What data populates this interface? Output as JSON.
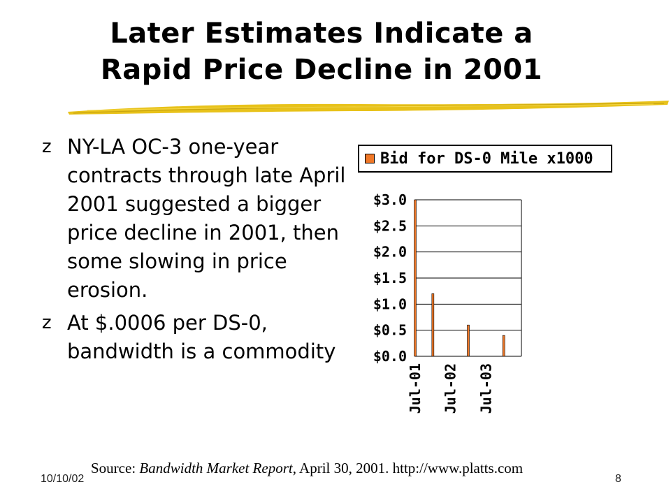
{
  "slide": {
    "title_line1": "Later Estimates Indicate a",
    "title_line2": "Rapid Price Decline in 2001",
    "bullet_glyph": "z",
    "bullets": [
      "NY-LA OC-3 one-year contracts through late April 2001 suggested a bigger price decline in 2001, then some slowing in price erosion.",
      "At $.0006 per DS-0, bandwidth is a commodity"
    ],
    "source_prefix": "Source: ",
    "source_italic": "Bandwidth Market Report",
    "source_suffix": ", April 30, 2001. http://www.platts.com",
    "footer_date": "10/10/02",
    "page_number": "8",
    "colors": {
      "series": "#f07828",
      "brush": "#e8c21a"
    }
  },
  "chart_data": {
    "type": "bar",
    "legend": "Bid for DS-0 Mile x1000",
    "legend_position": "top",
    "yticks": [
      "$3.0",
      "$2.5",
      "$2.0",
      "$1.5",
      "$1.0",
      "$0.5",
      "$0.0"
    ],
    "ylim": [
      0,
      3.0
    ],
    "xlim": [
      0,
      36
    ],
    "xticks": [
      {
        "label": "Jul-01",
        "x": 0
      },
      {
        "label": "Jul-02",
        "x": 12
      },
      {
        "label": "Jul-03",
        "x": 24
      }
    ],
    "grid": true,
    "series": [
      {
        "name": "Bid for DS-0 Mile x1000",
        "points": [
          {
            "x": 0,
            "y": 3.0
          },
          {
            "x": 6,
            "y": 1.2
          },
          {
            "x": 18,
            "y": 0.6
          },
          {
            "x": 30,
            "y": 0.4
          }
        ]
      }
    ]
  }
}
